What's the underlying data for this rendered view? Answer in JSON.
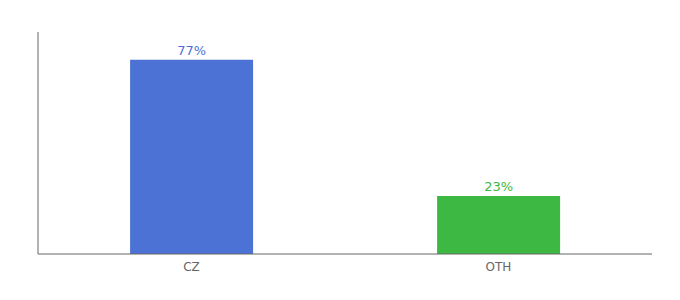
{
  "chart_data": {
    "type": "bar",
    "categories": [
      "CZ",
      "OTH"
    ],
    "values": [
      77,
      23
    ],
    "value_labels": [
      "77%",
      "23%"
    ],
    "colors": [
      "#4b72d4",
      "#3cb843"
    ],
    "ylim": [
      0,
      88
    ],
    "tick_labels": "x",
    "grid": false,
    "data_labels": true
  }
}
